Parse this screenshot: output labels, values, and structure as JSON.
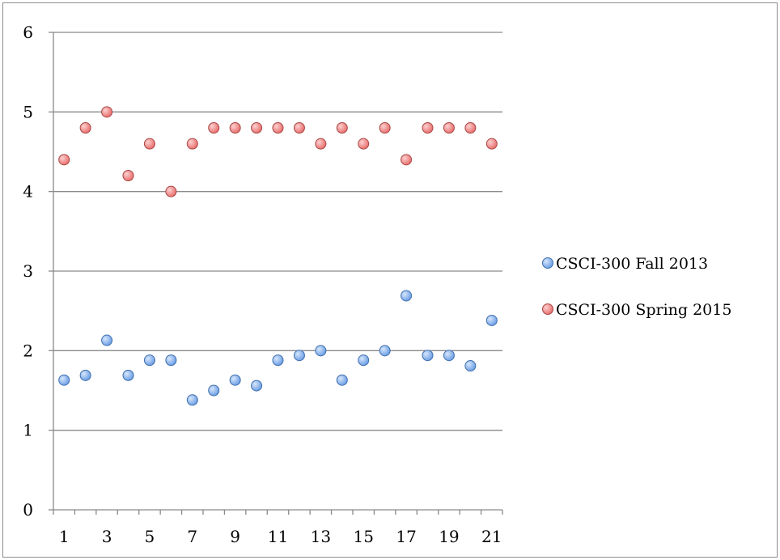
{
  "chart_data": {
    "type": "scatter",
    "title": "",
    "xlabel": "",
    "ylabel": "",
    "x": [
      1,
      2,
      3,
      4,
      5,
      6,
      7,
      8,
      9,
      10,
      11,
      12,
      13,
      14,
      15,
      16,
      17,
      18,
      19,
      20,
      21
    ],
    "xlim": [
      0.5,
      21.5
    ],
    "ylim": [
      0,
      6
    ],
    "x_ticks": [
      1,
      3,
      5,
      7,
      9,
      11,
      13,
      15,
      17,
      19,
      21
    ],
    "y_ticks": [
      0,
      1,
      2,
      3,
      4,
      5,
      6
    ],
    "grid": "horizontal",
    "legend_position": "right",
    "series": [
      {
        "name": "CSCI-300 Fall 2013",
        "color": "#6fa0e6",
        "stroke": "#3f6fae",
        "values": [
          1.63,
          1.69,
          2.13,
          1.69,
          1.88,
          1.88,
          1.38,
          1.5,
          1.63,
          1.56,
          1.88,
          1.94,
          2.0,
          1.63,
          1.88,
          2.0,
          2.69,
          1.94,
          1.94,
          1.81,
          2.38
        ]
      },
      {
        "name": "CSCI-300 Spring 2015",
        "color": "#e9716f",
        "stroke": "#a94745",
        "values": [
          4.4,
          4.8,
          5.0,
          4.2,
          4.6,
          4.0,
          4.6,
          4.8,
          4.8,
          4.8,
          4.8,
          4.8,
          4.6,
          4.8,
          4.6,
          4.8,
          4.4,
          4.8,
          4.8,
          4.8,
          4.6
        ]
      }
    ]
  }
}
